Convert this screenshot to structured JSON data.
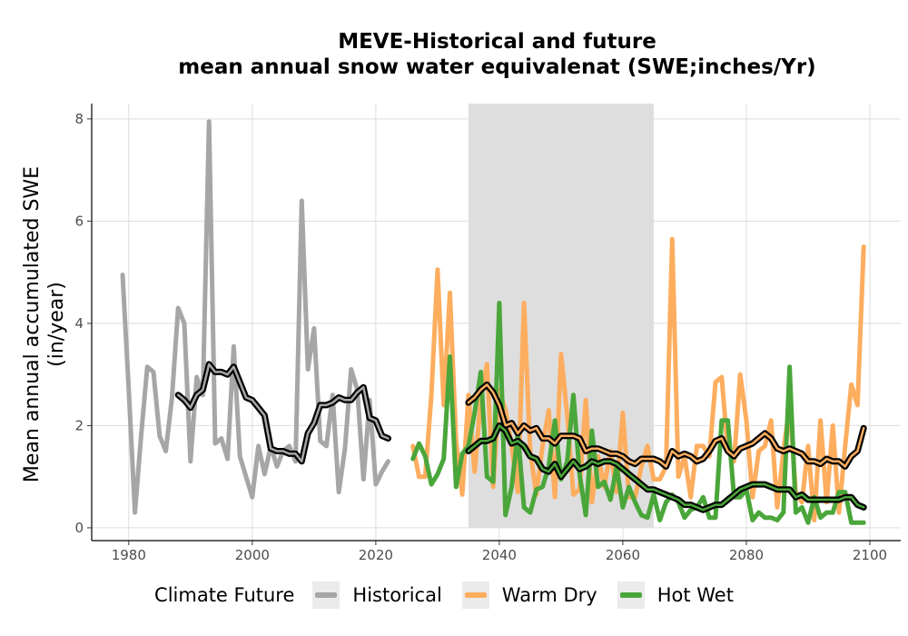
{
  "chart_data": {
    "type": "line",
    "title": "MEVE-Historical and future\nmean annual snow water equivalenat (SWE;inches/Yr)",
    "title_lines": [
      "MEVE-Historical and future",
      "mean annual snow water equivalenat (SWE;inches/Yr)"
    ],
    "xlabel": "",
    "ylabel_lines": [
      "Mean annual accumulated SWE",
      "(in/year)"
    ],
    "xlim": [
      1974,
      2105
    ],
    "ylim": [
      -0.25,
      8.3
    ],
    "x_ticks": [
      1980,
      2000,
      2020,
      2040,
      2060,
      2080,
      2100
    ],
    "y_ticks": [
      0,
      2,
      4,
      6,
      8
    ],
    "grid": true,
    "legend_position": "bottom",
    "legend_title": "Climate Future",
    "shaded_period": [
      2035,
      2065
    ],
    "colors": {
      "Historical": "#a6a6a6",
      "Warm Dry": "#fdad5e",
      "Hot Wet": "#4aa63a",
      "smooth_outline": "#000000",
      "shade": "#dcdcdc"
    },
    "series": [
      {
        "name": "Historical",
        "x": [
          1979,
          1980,
          1981,
          1982,
          1983,
          1984,
          1985,
          1986,
          1987,
          1988,
          1989,
          1990,
          1991,
          1992,
          1993,
          1994,
          1995,
          1996,
          1997,
          1998,
          1999,
          2000,
          2001,
          2002,
          2003,
          2004,
          2005,
          2006,
          2007,
          2008,
          2009,
          2010,
          2011,
          2012,
          2013,
          2014,
          2015,
          2016,
          2017,
          2018,
          2019,
          2020,
          2021,
          2022
        ],
        "values": [
          4.95,
          2.7,
          0.3,
          1.8,
          3.15,
          3.05,
          1.8,
          1.5,
          2.55,
          4.3,
          4.0,
          1.3,
          2.95,
          2.6,
          7.95,
          1.65,
          1.75,
          1.35,
          3.55,
          1.4,
          1.0,
          0.6,
          1.6,
          1.05,
          1.6,
          1.2,
          1.5,
          1.6,
          1.3,
          6.4,
          3.1,
          3.9,
          1.7,
          1.6,
          2.6,
          0.7,
          1.55,
          3.1,
          2.7,
          0.95,
          2.5,
          0.85,
          1.1,
          1.3
        ]
      },
      {
        "name": "Historical smoothed",
        "x": [
          1988,
          1989,
          1990,
          1991,
          1992,
          1993,
          1994,
          1995,
          1996,
          1997,
          1998,
          1999,
          2000,
          2001,
          2002,
          2003,
          2004,
          2005,
          2006,
          2007,
          2008,
          2009,
          2010,
          2011,
          2012,
          2013,
          2014,
          2015,
          2016,
          2017,
          2018,
          2019,
          2020,
          2021,
          2022
        ],
        "values": [
          2.6,
          2.5,
          2.35,
          2.6,
          2.7,
          3.2,
          3.05,
          3.05,
          3.0,
          3.15,
          2.85,
          2.55,
          2.5,
          2.35,
          2.2,
          1.55,
          1.5,
          1.5,
          1.45,
          1.45,
          1.3,
          1.85,
          2.05,
          2.4,
          2.4,
          2.45,
          2.55,
          2.5,
          2.5,
          2.65,
          2.75,
          2.15,
          2.1,
          1.8,
          1.75
        ]
      },
      {
        "name": "Warm Dry",
        "x": [
          2026,
          2027,
          2028,
          2029,
          2030,
          2031,
          2032,
          2033,
          2034,
          2035,
          2036,
          2037,
          2038,
          2039,
          2040,
          2041,
          2042,
          2043,
          2044,
          2045,
          2046,
          2047,
          2048,
          2049,
          2050,
          2051,
          2052,
          2053,
          2054,
          2055,
          2056,
          2057,
          2058,
          2059,
          2060,
          2061,
          2062,
          2063,
          2064,
          2065,
          2066,
          2067,
          2068,
          2069,
          2070,
          2071,
          2072,
          2073,
          2074,
          2075,
          2076,
          2077,
          2078,
          2079,
          2080,
          2081,
          2082,
          2083,
          2084,
          2085,
          2086,
          2087,
          2088,
          2089,
          2090,
          2091,
          2092,
          2093,
          2094,
          2095,
          2096,
          2097,
          2098,
          2099
        ],
        "values": [
          1.6,
          1.0,
          1.0,
          2.6,
          5.05,
          2.4,
          4.6,
          1.7,
          0.65,
          2.6,
          1.1,
          2.5,
          3.2,
          0.8,
          2.7,
          2.3,
          1.6,
          0.7,
          4.4,
          1.5,
          0.65,
          1.6,
          2.3,
          0.6,
          3.4,
          2.2,
          0.65,
          0.75,
          2.5,
          0.5,
          1.4,
          0.8,
          1.5,
          0.7,
          2.25,
          0.6,
          0.6,
          1.2,
          1.6,
          0.95,
          0.95,
          1.2,
          5.65,
          1.0,
          1.4,
          0.6,
          1.6,
          1.6,
          1.4,
          2.85,
          2.95,
          1.5,
          1.3,
          3.0,
          2.1,
          0.6,
          1.5,
          1.6,
          2.1,
          0.4,
          1.5,
          2.4,
          0.7,
          0.5,
          1.6,
          0.15,
          2.1,
          0.5,
          2.0,
          0.3,
          1.6,
          2.8,
          2.4,
          5.5
        ]
      },
      {
        "name": "Warm Dry smoothed",
        "x": [
          2035,
          2036,
          2037,
          2038,
          2039,
          2040,
          2041,
          2042,
          2043,
          2044,
          2045,
          2046,
          2047,
          2048,
          2049,
          2050,
          2051,
          2052,
          2053,
          2054,
          2055,
          2056,
          2057,
          2058,
          2059,
          2060,
          2061,
          2062,
          2063,
          2064,
          2065,
          2066,
          2067,
          2068,
          2069,
          2070,
          2071,
          2072,
          2073,
          2074,
          2075,
          2076,
          2077,
          2078,
          2079,
          2080,
          2081,
          2082,
          2083,
          2084,
          2085,
          2086,
          2087,
          2088,
          2089,
          2090,
          2091,
          2092,
          2093,
          2094,
          2095,
          2096,
          2097,
          2098,
          2099
        ],
        "values": [
          2.45,
          2.55,
          2.7,
          2.8,
          2.65,
          2.4,
          2.0,
          2.05,
          1.85,
          2.0,
          1.9,
          1.95,
          1.75,
          1.75,
          1.65,
          1.8,
          1.8,
          1.8,
          1.75,
          1.5,
          1.55,
          1.55,
          1.5,
          1.45,
          1.45,
          1.4,
          1.3,
          1.25,
          1.35,
          1.35,
          1.35,
          1.3,
          1.2,
          1.5,
          1.4,
          1.45,
          1.4,
          1.3,
          1.35,
          1.5,
          1.7,
          1.75,
          1.5,
          1.4,
          1.55,
          1.6,
          1.65,
          1.75,
          1.85,
          1.75,
          1.55,
          1.5,
          1.55,
          1.5,
          1.45,
          1.3,
          1.3,
          1.25,
          1.35,
          1.3,
          1.3,
          1.2,
          1.4,
          1.5,
          1.95
        ]
      },
      {
        "name": "Hot Wet",
        "x": [
          2026,
          2027,
          2028,
          2029,
          2030,
          2031,
          2032,
          2033,
          2034,
          2035,
          2036,
          2037,
          2038,
          2039,
          2040,
          2041,
          2042,
          2043,
          2044,
          2045,
          2046,
          2047,
          2048,
          2049,
          2050,
          2051,
          2052,
          2053,
          2054,
          2055,
          2056,
          2057,
          2058,
          2059,
          2060,
          2061,
          2062,
          2063,
          2064,
          2065,
          2066,
          2067,
          2068,
          2069,
          2070,
          2071,
          2072,
          2073,
          2074,
          2075,
          2076,
          2077,
          2078,
          2079,
          2080,
          2081,
          2082,
          2083,
          2084,
          2085,
          2086,
          2087,
          2088,
          2089,
          2090,
          2091,
          2092,
          2093,
          2094,
          2095,
          2096,
          2097,
          2098,
          2099
        ],
        "values": [
          1.35,
          1.65,
          1.4,
          0.85,
          1.05,
          1.35,
          3.35,
          0.8,
          1.45,
          1.6,
          2.25,
          3.05,
          1.0,
          0.9,
          4.4,
          0.25,
          0.8,
          1.85,
          0.4,
          0.3,
          0.75,
          0.8,
          1.2,
          2.1,
          0.95,
          1.3,
          2.6,
          1.05,
          0.25,
          1.9,
          0.8,
          0.9,
          0.55,
          1.2,
          0.4,
          0.8,
          0.5,
          0.25,
          0.2,
          0.65,
          0.15,
          0.5,
          0.65,
          0.5,
          0.2,
          0.35,
          0.4,
          0.6,
          0.2,
          0.2,
          2.1,
          2.1,
          0.6,
          0.6,
          0.75,
          0.15,
          0.3,
          0.2,
          0.2,
          0.15,
          0.3,
          3.15,
          0.3,
          0.4,
          0.1,
          0.6,
          0.2,
          0.3,
          0.3,
          0.7,
          0.7,
          0.1,
          0.1,
          0.1
        ]
      },
      {
        "name": "Hot Wet smoothed",
        "x": [
          2035,
          2036,
          2037,
          2038,
          2039,
          2040,
          2041,
          2042,
          2043,
          2044,
          2045,
          2046,
          2047,
          2048,
          2049,
          2050,
          2051,
          2052,
          2053,
          2054,
          2055,
          2056,
          2057,
          2058,
          2059,
          2060,
          2061,
          2062,
          2063,
          2064,
          2065,
          2066,
          2067,
          2068,
          2069,
          2070,
          2071,
          2072,
          2073,
          2074,
          2075,
          2076,
          2077,
          2078,
          2079,
          2080,
          2081,
          2082,
          2083,
          2084,
          2085,
          2086,
          2087,
          2088,
          2089,
          2090,
          2091,
          2092,
          2093,
          2094,
          2095,
          2096,
          2097,
          2098,
          2099
        ],
        "values": [
          1.5,
          1.6,
          1.7,
          1.7,
          1.75,
          2.0,
          1.9,
          1.65,
          1.7,
          1.6,
          1.4,
          1.35,
          1.15,
          1.1,
          1.25,
          1.0,
          1.15,
          1.3,
          1.15,
          1.2,
          1.3,
          1.25,
          1.3,
          1.3,
          1.25,
          1.15,
          1.05,
          0.95,
          0.85,
          0.75,
          0.75,
          0.7,
          0.65,
          0.6,
          0.55,
          0.45,
          0.45,
          0.4,
          0.35,
          0.4,
          0.45,
          0.45,
          0.55,
          0.65,
          0.75,
          0.8,
          0.85,
          0.85,
          0.85,
          0.8,
          0.75,
          0.75,
          0.75,
          0.6,
          0.65,
          0.55,
          0.55,
          0.55,
          0.55,
          0.55,
          0.55,
          0.6,
          0.6,
          0.45,
          0.4
        ]
      }
    ]
  }
}
